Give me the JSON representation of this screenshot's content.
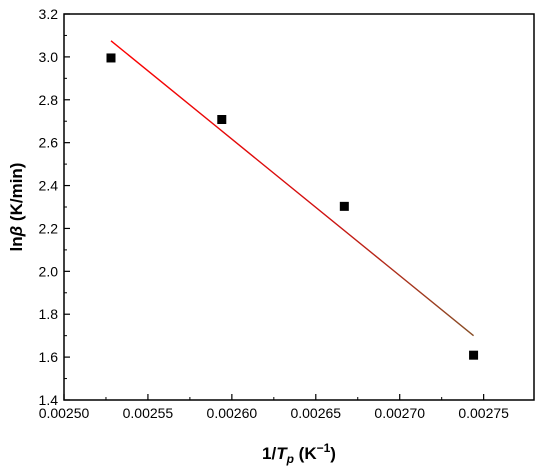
{
  "chart_data": {
    "type": "scatter",
    "xlabel": {
      "prefix": "1/",
      "var": "T",
      "sub": "p",
      "unit_open": " (K",
      "sup": "−1",
      "unit_close": ")"
    },
    "ylabel": {
      "prefix": "ln",
      "var": "β",
      "unit": " (K/min)"
    },
    "xlim": [
      0.0025,
      0.00278
    ],
    "ylim": [
      1.4,
      3.2
    ],
    "xticks": [
      0.0025,
      0.00255,
      0.0026,
      0.00265,
      0.0027,
      0.00275
    ],
    "xtick_labels": [
      "0.00250",
      "0.00255",
      "0.00260",
      "0.00265",
      "0.00270",
      "0.00275"
    ],
    "yticks": [
      1.4,
      1.6,
      1.8,
      2.0,
      2.2,
      2.4,
      2.6,
      2.8,
      3.0,
      3.2
    ],
    "ytick_labels": [
      "1.4",
      "1.6",
      "1.8",
      "2.0",
      "2.2",
      "2.4",
      "2.6",
      "2.8",
      "3.0",
      "3.2"
    ],
    "grid": false,
    "legend": false,
    "series": [
      {
        "kind": "points",
        "marker": "square",
        "color": "#000000",
        "x": [
          0.002528,
          0.002594,
          0.002667,
          0.002744
        ],
        "y": [
          2.995,
          2.708,
          2.303,
          1.609
        ]
      },
      {
        "kind": "fit-line",
        "colors": [
          "#ff0000",
          "#8b5a2b"
        ],
        "x": [
          0.002528,
          0.002744
        ],
        "y": [
          3.075,
          1.7
        ]
      }
    ]
  }
}
